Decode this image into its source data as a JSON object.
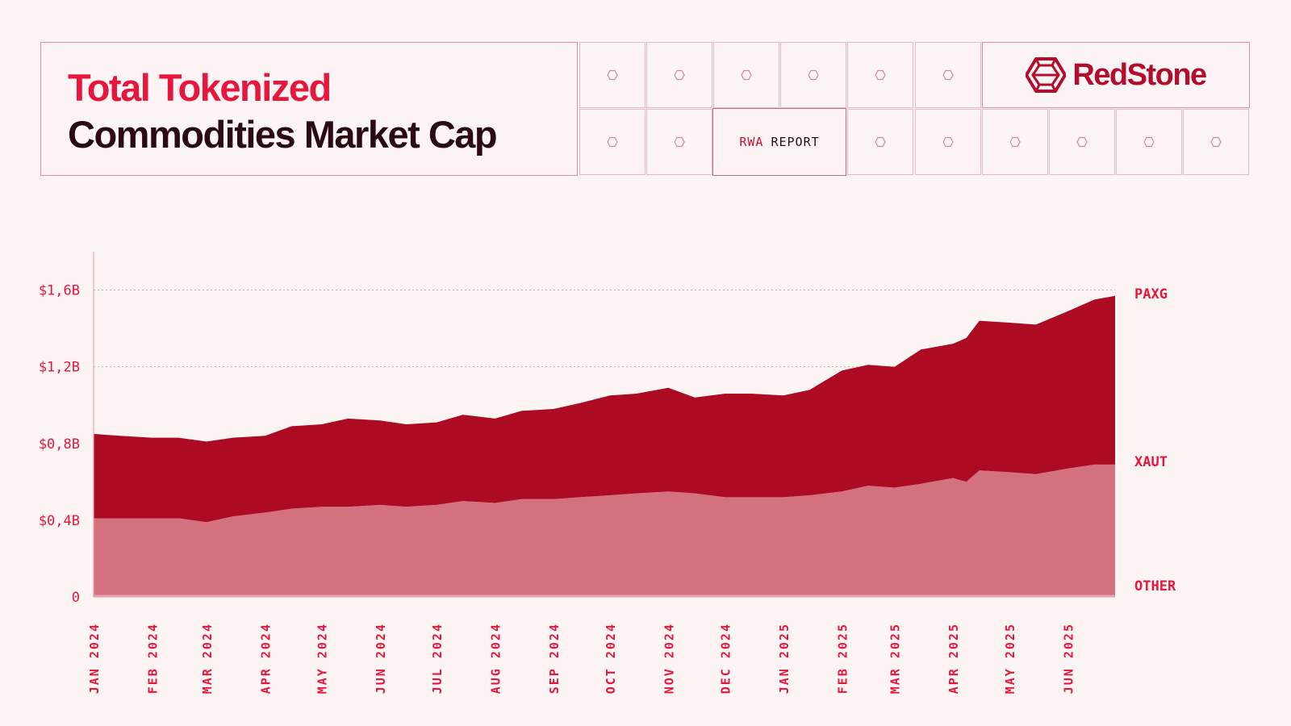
{
  "header": {
    "title_line1": "Total Tokenized",
    "title_line2": "Commodities Market Cap",
    "report_tag_a": "RWA",
    "report_tag_b": "REPORT",
    "brand": "RedStone",
    "decor_icon": "hexagon-icon",
    "brand_icon": "redstone-logo-icon"
  },
  "colors": {
    "background": "#fdf4f4",
    "accent": "#e6163d",
    "title_dark": "#2b0b12",
    "paxg": "#ad0a23",
    "xaut": "#d4717f",
    "other": "#e9a3b0"
  },
  "chart_data": {
    "type": "area",
    "stacked": true,
    "x_tick_labels": [
      "JAN 2024",
      "FEB 2024",
      "MAR 2024",
      "APR 2024",
      "MAY 2024",
      "JUN 2024",
      "JUL 2024",
      "AUG 2024",
      "SEP 2024",
      "OCT 2024",
      "NOV 2024",
      "DEC 2024",
      "JAN 2025",
      "FEB 2025",
      "MAR 2025",
      "APR 2025",
      "MAY 2025",
      "JUN 2025"
    ],
    "y_tick_labels": [
      "0",
      "$0,4B",
      "$0,8B",
      "$1,2B",
      "$1,6B"
    ],
    "y_ticks": [
      0,
      0.4,
      0.8,
      1.2,
      1.6
    ],
    "ylim": [
      0,
      1.8
    ],
    "y_unit": "B USD",
    "x_range": [
      "2024-01-01",
      "2025-06-26"
    ],
    "grid": "dotted horizontal lines at $1,2B and $1,6B",
    "legend_placement": "right, labels at series ends",
    "x": [
      "2024-01-01",
      "2024-01-15",
      "2024-02-01",
      "2024-02-15",
      "2024-03-01",
      "2024-03-15",
      "2024-04-01",
      "2024-04-15",
      "2024-05-01",
      "2024-05-15",
      "2024-06-01",
      "2024-06-15",
      "2024-07-01",
      "2024-07-15",
      "2024-08-01",
      "2024-08-15",
      "2024-09-01",
      "2024-09-15",
      "2024-10-01",
      "2024-10-15",
      "2024-11-01",
      "2024-11-15",
      "2024-12-01",
      "2024-12-15",
      "2025-01-01",
      "2025-01-15",
      "2025-02-01",
      "2025-02-15",
      "2025-03-01",
      "2025-03-15",
      "2025-04-01",
      "2025-04-08",
      "2025-04-15",
      "2025-05-01",
      "2025-05-15",
      "2025-06-01",
      "2025-06-15",
      "2025-06-26"
    ],
    "series": [
      {
        "name": "OTHER",
        "values": [
          0.01,
          0.01,
          0.01,
          0.01,
          0.01,
          0.01,
          0.01,
          0.01,
          0.01,
          0.01,
          0.01,
          0.01,
          0.01,
          0.01,
          0.01,
          0.01,
          0.01,
          0.01,
          0.01,
          0.01,
          0.01,
          0.01,
          0.01,
          0.01,
          0.01,
          0.01,
          0.01,
          0.01,
          0.01,
          0.01,
          0.01,
          0.01,
          0.01,
          0.01,
          0.01,
          0.01,
          0.01,
          0.01
        ]
      },
      {
        "name": "XAUT",
        "values": [
          0.4,
          0.4,
          0.4,
          0.4,
          0.38,
          0.41,
          0.43,
          0.45,
          0.46,
          0.46,
          0.47,
          0.46,
          0.47,
          0.49,
          0.48,
          0.5,
          0.5,
          0.51,
          0.52,
          0.53,
          0.54,
          0.53,
          0.51,
          0.51,
          0.51,
          0.52,
          0.54,
          0.57,
          0.56,
          0.58,
          0.61,
          0.59,
          0.65,
          0.64,
          0.63,
          0.66,
          0.68,
          0.68
        ]
      },
      {
        "name": "PAXG",
        "values": [
          0.44,
          0.43,
          0.42,
          0.42,
          0.42,
          0.41,
          0.4,
          0.43,
          0.43,
          0.46,
          0.44,
          0.43,
          0.43,
          0.45,
          0.44,
          0.46,
          0.47,
          0.49,
          0.52,
          0.52,
          0.54,
          0.5,
          0.54,
          0.54,
          0.53,
          0.55,
          0.63,
          0.63,
          0.63,
          0.7,
          0.7,
          0.75,
          0.78,
          0.78,
          0.78,
          0.82,
          0.86,
          0.88
        ]
      }
    ]
  }
}
